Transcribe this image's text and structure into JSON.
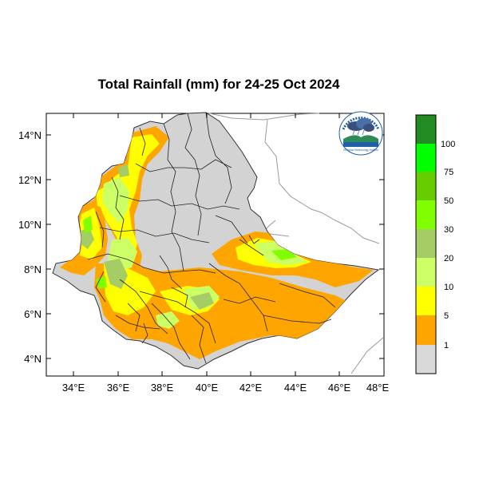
{
  "title": "Total Rainfall (mm) for 24-25 Oct 2024",
  "y_ticks": [
    "4°N",
    "6°N",
    "8°N",
    "10°N",
    "12°N",
    "14°N"
  ],
  "x_ticks": [
    "34°E",
    "36°E",
    "38°E",
    "40°E",
    "42°E",
    "44°E",
    "46°E",
    "48°E"
  ],
  "legend": {
    "labels": [
      "1",
      "5",
      "10",
      "20",
      "30",
      "50",
      "75",
      "100"
    ],
    "colors": [
      "#d9d9d9",
      "#ffa500",
      "#ffff00",
      "#ccff66",
      "#a6cc66",
      "#80ff00",
      "#66cc00",
      "#00ff00",
      "#228b22"
    ]
  },
  "colors": {
    "land": "#d3d3d3",
    "orange": "#ffa500",
    "yellow": "#ffff00",
    "lightgreen": "#ccff66",
    "olive": "#a6cc66",
    "green": "#80ff00"
  },
  "logo": {
    "caption": "Ethiopian Meteorology Institute",
    "icon": "ethiopian-meteorology-logo"
  }
}
